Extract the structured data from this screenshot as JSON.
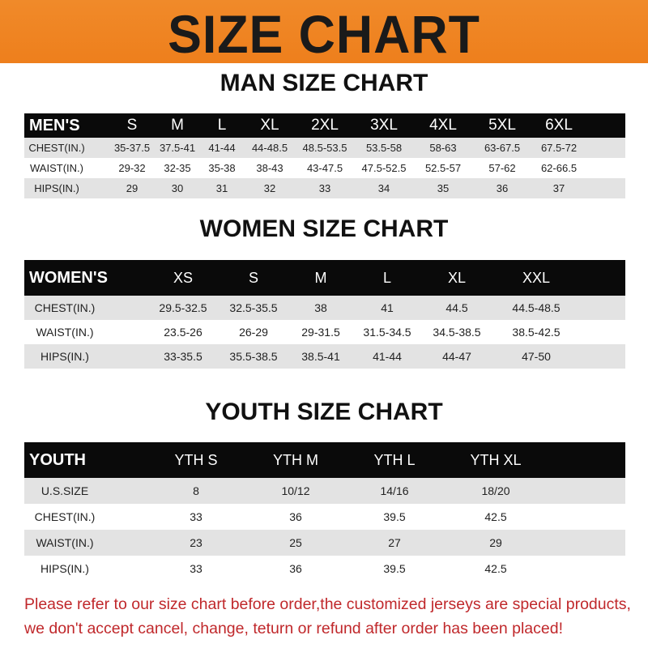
{
  "banner": {
    "title": "SIZE CHART",
    "color": "#ee7f1c"
  },
  "men": {
    "title": "MAN SIZE CHART",
    "header": [
      "MEN'S",
      "S",
      "M",
      "L",
      "XL",
      "2XL",
      "3XL",
      "4XL",
      "5XL",
      "6XL"
    ],
    "rows": [
      [
        "CHEST(IN.)",
        "35-37.5",
        "37.5-41",
        "41-44",
        "44-48.5",
        "48.5-53.5",
        "53.5-58",
        "58-63",
        "63-67.5",
        "67.5-72"
      ],
      [
        "WAIST(IN.)",
        "29-32",
        "32-35",
        "35-38",
        "38-43",
        "43-47.5",
        "47.5-52.5",
        "52.5-57",
        "57-62",
        "62-66.5"
      ],
      [
        "HIPS(IN.)",
        "29",
        "30",
        "31",
        "32",
        "33",
        "34",
        "35",
        "36",
        "37"
      ]
    ]
  },
  "women": {
    "title": "WOMEN SIZE CHART",
    "header": [
      "WOMEN'S",
      "XS",
      "S",
      "M",
      "L",
      "XL",
      "XXL"
    ],
    "rows": [
      [
        "CHEST(IN.)",
        "29.5-32.5",
        "32.5-35.5",
        "38",
        "41",
        "44.5",
        "44.5-48.5"
      ],
      [
        "WAIST(IN.)",
        "23.5-26",
        "26-29",
        "29-31.5",
        "31.5-34.5",
        "34.5-38.5",
        "38.5-42.5"
      ],
      [
        "HIPS(IN.)",
        "33-35.5",
        "35.5-38.5",
        "38.5-41",
        "41-44",
        "44-47",
        "47-50"
      ]
    ]
  },
  "youth": {
    "title": "YOUTH SIZE CHART",
    "header": [
      "YOUTH",
      "YTH S",
      "YTH M",
      "YTH L",
      "YTH XL"
    ],
    "rows": [
      [
        "U.S.SIZE",
        "8",
        "10/12",
        "14/16",
        "18/20"
      ],
      [
        "CHEST(IN.)",
        "33",
        "36",
        "39.5",
        "42.5"
      ],
      [
        "WAIST(IN.)",
        "23",
        "25",
        "27",
        "29"
      ],
      [
        "HIPS(IN.)",
        "33",
        "36",
        "39.5",
        "42.5"
      ]
    ]
  },
  "footer": {
    "line1": "Please refer to our size chart before order,the customized jerseys are special products,",
    "line2": "we don't accept cancel, change, teturn or refund after order has been placed!",
    "color": "#c0282b"
  }
}
